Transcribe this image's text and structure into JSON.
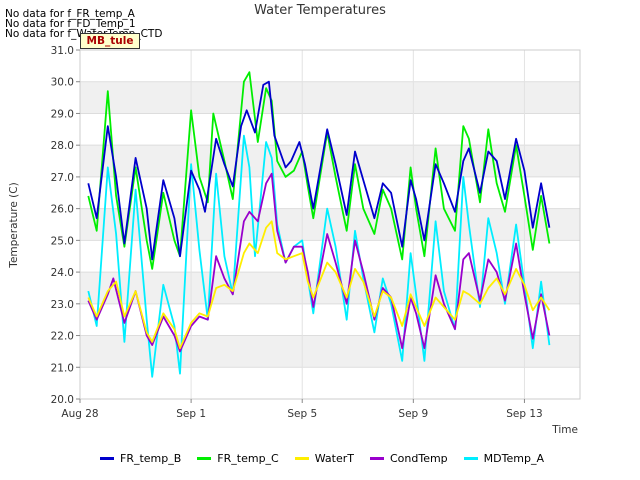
{
  "notes": [
    "No data for f_FR_temp_A",
    "No data for f_FD_Temp_1",
    "No data for f_WaterTemp_CTD"
  ],
  "badge": "MB_tule",
  "chart_data": {
    "type": "line",
    "title": "Water Temperatures",
    "xlabel": "Time",
    "ylabel": "Temperature (C)",
    "ylim": [
      20.0,
      31.0
    ],
    "yticks": [
      "20.0",
      "21.0",
      "22.0",
      "23.0",
      "24.0",
      "25.0",
      "26.0",
      "27.0",
      "28.0",
      "29.0",
      "30.0",
      "31.0"
    ],
    "xlim": [
      0,
      18
    ],
    "xticks": [
      {
        "value": 0,
        "label": "Aug 28"
      },
      {
        "value": 4,
        "label": "Sep 1"
      },
      {
        "value": 8,
        "label": "Sep 5"
      },
      {
        "value": 12,
        "label": "Sep 9"
      },
      {
        "value": 16,
        "label": "Sep 13"
      }
    ],
    "x_unit": "days since Aug 28",
    "grid": true,
    "legend_position": "bottom",
    "series": [
      {
        "name": "FR_temp_B",
        "color": "#0000cc",
        "points": [
          [
            0.3,
            26.8
          ],
          [
            0.6,
            25.7
          ],
          [
            1.0,
            28.6
          ],
          [
            1.3,
            27.0
          ],
          [
            1.6,
            24.9
          ],
          [
            2.0,
            27.6
          ],
          [
            2.4,
            26.0
          ],
          [
            2.6,
            24.4
          ],
          [
            3.0,
            26.9
          ],
          [
            3.4,
            25.7
          ],
          [
            3.6,
            24.5
          ],
          [
            4.0,
            27.2
          ],
          [
            4.3,
            26.6
          ],
          [
            4.5,
            25.9
          ],
          [
            4.9,
            28.2
          ],
          [
            5.2,
            27.4
          ],
          [
            5.5,
            26.7
          ],
          [
            5.8,
            28.6
          ],
          [
            6.0,
            29.1
          ],
          [
            6.3,
            28.4
          ],
          [
            6.6,
            29.9
          ],
          [
            6.8,
            30.0
          ],
          [
            7.0,
            28.3
          ],
          [
            7.4,
            27.3
          ],
          [
            7.6,
            27.5
          ],
          [
            7.9,
            28.1
          ],
          [
            8.1,
            27.4
          ],
          [
            8.4,
            26.0
          ],
          [
            8.9,
            28.5
          ],
          [
            9.2,
            27.4
          ],
          [
            9.6,
            25.8
          ],
          [
            9.9,
            27.8
          ],
          [
            10.2,
            26.9
          ],
          [
            10.6,
            25.7
          ],
          [
            10.9,
            26.8
          ],
          [
            11.2,
            26.5
          ],
          [
            11.6,
            24.8
          ],
          [
            11.9,
            26.9
          ],
          [
            12.1,
            26.3
          ],
          [
            12.4,
            25.0
          ],
          [
            12.8,
            27.4
          ],
          [
            13.1,
            26.8
          ],
          [
            13.5,
            25.9
          ],
          [
            13.8,
            27.5
          ],
          [
            14.0,
            27.9
          ],
          [
            14.4,
            26.5
          ],
          [
            14.7,
            27.8
          ],
          [
            15.0,
            27.5
          ],
          [
            15.3,
            26.3
          ],
          [
            15.7,
            28.2
          ],
          [
            16.0,
            27.2
          ],
          [
            16.3,
            25.4
          ],
          [
            16.6,
            26.8
          ],
          [
            16.9,
            25.4
          ]
        ]
      },
      {
        "name": "FR_temp_C",
        "color": "#00ee00",
        "points": [
          [
            0.3,
            26.4
          ],
          [
            0.6,
            25.3
          ],
          [
            1.0,
            29.7
          ],
          [
            1.3,
            26.4
          ],
          [
            1.6,
            24.8
          ],
          [
            2.0,
            27.3
          ],
          [
            2.4,
            25.0
          ],
          [
            2.6,
            24.1
          ],
          [
            3.0,
            26.5
          ],
          [
            3.4,
            25.0
          ],
          [
            3.6,
            24.5
          ],
          [
            4.0,
            29.1
          ],
          [
            4.3,
            27.0
          ],
          [
            4.6,
            26.2
          ],
          [
            4.8,
            29.0
          ],
          [
            5.2,
            27.5
          ],
          [
            5.5,
            26.3
          ],
          [
            5.9,
            30.0
          ],
          [
            6.1,
            30.3
          ],
          [
            6.4,
            28.1
          ],
          [
            6.7,
            29.8
          ],
          [
            6.9,
            29.4
          ],
          [
            7.1,
            27.5
          ],
          [
            7.4,
            27.0
          ],
          [
            7.7,
            27.2
          ],
          [
            8.0,
            27.8
          ],
          [
            8.2,
            26.7
          ],
          [
            8.4,
            25.7
          ],
          [
            8.9,
            28.4
          ],
          [
            9.2,
            27.0
          ],
          [
            9.6,
            25.3
          ],
          [
            9.9,
            27.4
          ],
          [
            10.2,
            26.0
          ],
          [
            10.6,
            25.2
          ],
          [
            10.9,
            26.6
          ],
          [
            11.2,
            26.0
          ],
          [
            11.6,
            24.4
          ],
          [
            11.9,
            27.3
          ],
          [
            12.1,
            26.0
          ],
          [
            12.4,
            24.5
          ],
          [
            12.8,
            27.9
          ],
          [
            13.1,
            26.0
          ],
          [
            13.5,
            25.3
          ],
          [
            13.8,
            28.6
          ],
          [
            14.0,
            28.2
          ],
          [
            14.4,
            26.2
          ],
          [
            14.7,
            28.5
          ],
          [
            15.0,
            26.8
          ],
          [
            15.3,
            25.9
          ],
          [
            15.7,
            28.0
          ],
          [
            16.0,
            26.4
          ],
          [
            16.3,
            24.7
          ],
          [
            16.6,
            26.4
          ],
          [
            16.9,
            24.9
          ]
        ]
      },
      {
        "name": "WaterT",
        "color": "#ffee00",
        "points": [
          [
            0.3,
            23.2
          ],
          [
            0.6,
            22.6
          ],
          [
            1.0,
            23.4
          ],
          [
            1.3,
            23.7
          ],
          [
            1.6,
            22.6
          ],
          [
            2.0,
            23.4
          ],
          [
            2.4,
            22.1
          ],
          [
            2.6,
            21.8
          ],
          [
            3.0,
            22.7
          ],
          [
            3.4,
            22.2
          ],
          [
            3.6,
            21.6
          ],
          [
            4.0,
            22.4
          ],
          [
            4.3,
            22.7
          ],
          [
            4.6,
            22.6
          ],
          [
            4.9,
            23.5
          ],
          [
            5.2,
            23.6
          ],
          [
            5.5,
            23.4
          ],
          [
            5.9,
            24.6
          ],
          [
            6.1,
            24.9
          ],
          [
            6.4,
            24.6
          ],
          [
            6.7,
            25.4
          ],
          [
            6.9,
            25.6
          ],
          [
            7.1,
            24.6
          ],
          [
            7.4,
            24.4
          ],
          [
            7.7,
            24.5
          ],
          [
            8.0,
            24.6
          ],
          [
            8.2,
            23.7
          ],
          [
            8.4,
            23.2
          ],
          [
            8.9,
            24.3
          ],
          [
            9.2,
            24.0
          ],
          [
            9.6,
            23.2
          ],
          [
            9.9,
            24.1
          ],
          [
            10.2,
            23.7
          ],
          [
            10.6,
            22.6
          ],
          [
            10.9,
            23.4
          ],
          [
            11.2,
            23.2
          ],
          [
            11.6,
            22.3
          ],
          [
            11.9,
            23.3
          ],
          [
            12.1,
            22.9
          ],
          [
            12.4,
            22.3
          ],
          [
            12.8,
            23.2
          ],
          [
            13.1,
            22.9
          ],
          [
            13.5,
            22.5
          ],
          [
            13.8,
            23.4
          ],
          [
            14.0,
            23.3
          ],
          [
            14.4,
            23.0
          ],
          [
            14.7,
            23.5
          ],
          [
            15.0,
            23.8
          ],
          [
            15.3,
            23.3
          ],
          [
            15.7,
            24.1
          ],
          [
            16.0,
            23.6
          ],
          [
            16.3,
            22.8
          ],
          [
            16.6,
            23.2
          ],
          [
            16.9,
            22.8
          ]
        ]
      },
      {
        "name": "CondTemp",
        "color": "#9900cc",
        "points": [
          [
            0.3,
            23.1
          ],
          [
            0.6,
            22.5
          ],
          [
            1.0,
            23.3
          ],
          [
            1.2,
            23.8
          ],
          [
            1.6,
            22.4
          ],
          [
            2.0,
            23.4
          ],
          [
            2.4,
            22.0
          ],
          [
            2.6,
            21.7
          ],
          [
            3.0,
            22.6
          ],
          [
            3.4,
            22.0
          ],
          [
            3.6,
            21.5
          ],
          [
            4.0,
            22.3
          ],
          [
            4.3,
            22.6
          ],
          [
            4.6,
            22.5
          ],
          [
            4.9,
            24.5
          ],
          [
            5.2,
            23.8
          ],
          [
            5.5,
            23.3
          ],
          [
            5.9,
            25.6
          ],
          [
            6.1,
            25.9
          ],
          [
            6.4,
            25.6
          ],
          [
            6.7,
            26.8
          ],
          [
            6.9,
            27.1
          ],
          [
            7.1,
            25.3
          ],
          [
            7.4,
            24.3
          ],
          [
            7.7,
            24.8
          ],
          [
            8.0,
            24.8
          ],
          [
            8.2,
            24.0
          ],
          [
            8.4,
            22.9
          ],
          [
            8.9,
            25.2
          ],
          [
            9.2,
            24.3
          ],
          [
            9.6,
            23.0
          ],
          [
            9.9,
            25.0
          ],
          [
            10.2,
            24.0
          ],
          [
            10.6,
            22.5
          ],
          [
            10.9,
            23.5
          ],
          [
            11.2,
            23.2
          ],
          [
            11.6,
            21.6
          ],
          [
            11.9,
            23.2
          ],
          [
            12.1,
            22.7
          ],
          [
            12.4,
            21.6
          ],
          [
            12.8,
            23.9
          ],
          [
            13.1,
            23.0
          ],
          [
            13.5,
            22.2
          ],
          [
            13.8,
            24.4
          ],
          [
            14.0,
            24.6
          ],
          [
            14.4,
            23.1
          ],
          [
            14.7,
            24.4
          ],
          [
            15.0,
            24.0
          ],
          [
            15.3,
            23.1
          ],
          [
            15.7,
            24.9
          ],
          [
            16.0,
            23.3
          ],
          [
            16.3,
            21.9
          ],
          [
            16.6,
            23.3
          ],
          [
            16.9,
            22.0
          ]
        ]
      },
      {
        "name": "MDTemp_A",
        "color": "#00eeff",
        "points": [
          [
            0.3,
            23.4
          ],
          [
            0.6,
            22.3
          ],
          [
            1.0,
            27.3
          ],
          [
            1.3,
            25.2
          ],
          [
            1.6,
            21.8
          ],
          [
            2.0,
            26.6
          ],
          [
            2.4,
            22.5
          ],
          [
            2.6,
            20.7
          ],
          [
            3.0,
            23.6
          ],
          [
            3.4,
            22.3
          ],
          [
            3.6,
            20.8
          ],
          [
            4.0,
            27.4
          ],
          [
            4.3,
            24.7
          ],
          [
            4.6,
            22.5
          ],
          [
            4.9,
            27.1
          ],
          [
            5.2,
            24.5
          ],
          [
            5.5,
            23.3
          ],
          [
            5.9,
            28.3
          ],
          [
            6.1,
            27.3
          ],
          [
            6.3,
            24.5
          ],
          [
            6.7,
            28.1
          ],
          [
            6.9,
            27.6
          ],
          [
            7.1,
            25.5
          ],
          [
            7.4,
            24.3
          ],
          [
            7.7,
            24.8
          ],
          [
            8.0,
            25.0
          ],
          [
            8.2,
            23.8
          ],
          [
            8.4,
            22.7
          ],
          [
            8.9,
            26.0
          ],
          [
            9.2,
            24.8
          ],
          [
            9.6,
            22.5
          ],
          [
            9.9,
            25.3
          ],
          [
            10.2,
            23.8
          ],
          [
            10.6,
            22.1
          ],
          [
            10.9,
            23.8
          ],
          [
            11.2,
            23.0
          ],
          [
            11.6,
            21.2
          ],
          [
            11.9,
            24.6
          ],
          [
            12.1,
            23.3
          ],
          [
            12.4,
            21.2
          ],
          [
            12.8,
            25.6
          ],
          [
            13.1,
            23.4
          ],
          [
            13.5,
            22.2
          ],
          [
            13.8,
            27.0
          ],
          [
            14.0,
            25.5
          ],
          [
            14.4,
            22.9
          ],
          [
            14.7,
            25.7
          ],
          [
            15.0,
            24.6
          ],
          [
            15.3,
            23.0
          ],
          [
            15.7,
            25.5
          ],
          [
            16.0,
            23.6
          ],
          [
            16.3,
            21.6
          ],
          [
            16.6,
            23.7
          ],
          [
            16.9,
            21.7
          ]
        ]
      }
    ]
  }
}
